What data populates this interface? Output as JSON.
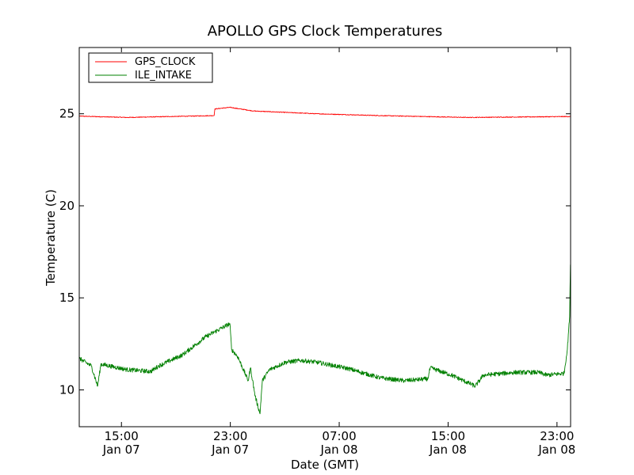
{
  "chart_data": {
    "type": "line",
    "title": "APOLLO GPS Clock Temperatures",
    "xlabel": "Date (GMT)",
    "ylabel": "Temperature (C)",
    "x_units": "hours since Jan 07 00:00 GMT",
    "xlim": [
      11.9,
      48.0
    ],
    "ylim": [
      8.0,
      28.6
    ],
    "grid": false,
    "legend_position": "top-left",
    "xticks": [
      {
        "value": 15,
        "label1": "15:00",
        "label2": "Jan 07"
      },
      {
        "value": 23,
        "label1": "23:00",
        "label2": "Jan 07"
      },
      {
        "value": 31,
        "label1": "07:00",
        "label2": "Jan 08"
      },
      {
        "value": 39,
        "label1": "15:00",
        "label2": "Jan 08"
      },
      {
        "value": 47,
        "label1": "23:00",
        "label2": "Jan 08"
      }
    ],
    "yticks": [
      {
        "value": 10,
        "label": "10"
      },
      {
        "value": 15,
        "label": "15"
      },
      {
        "value": 20,
        "label": "20"
      },
      {
        "value": 25,
        "label": "25"
      }
    ],
    "series": [
      {
        "name": "GPS_CLOCK",
        "color": "#ff0000",
        "noise": 0.02,
        "x": [
          11.92,
          15.41,
          21.81,
          21.86,
          22.97,
          24.71,
          29.37,
          34.02,
          40.42,
          47.99
        ],
        "y": [
          24.87,
          24.8,
          24.9,
          25.26,
          25.35,
          25.15,
          25.0,
          24.9,
          24.8,
          24.85
        ]
      },
      {
        "name": "ILE_INTAKE",
        "color": "#008000",
        "noise": 0.12,
        "x": [
          11.92,
          12.79,
          13.25,
          13.49,
          15.41,
          17.15,
          17.73,
          19.48,
          21.22,
          22.97,
          23.09,
          23.55,
          24.31,
          24.48,
          24.83,
          25.18,
          25.35,
          25.88,
          27.04,
          28.21,
          29.37,
          31.7,
          34.02,
          35.77,
          37.51,
          37.69,
          39.26,
          41.0,
          41.59,
          43.91,
          45.66,
          46.24,
          47.52,
          47.76,
          47.93,
          47.99
        ],
        "y": [
          11.7,
          11.3,
          10.2,
          11.4,
          11.1,
          11.0,
          11.3,
          11.9,
          12.9,
          13.6,
          12.2,
          11.8,
          10.5,
          11.2,
          9.65,
          8.7,
          10.5,
          11.1,
          11.5,
          11.6,
          11.5,
          11.15,
          10.65,
          10.5,
          10.6,
          11.2,
          10.8,
          10.2,
          10.8,
          10.95,
          10.95,
          10.8,
          10.9,
          12.2,
          14.0,
          16.8
        ]
      }
    ]
  }
}
